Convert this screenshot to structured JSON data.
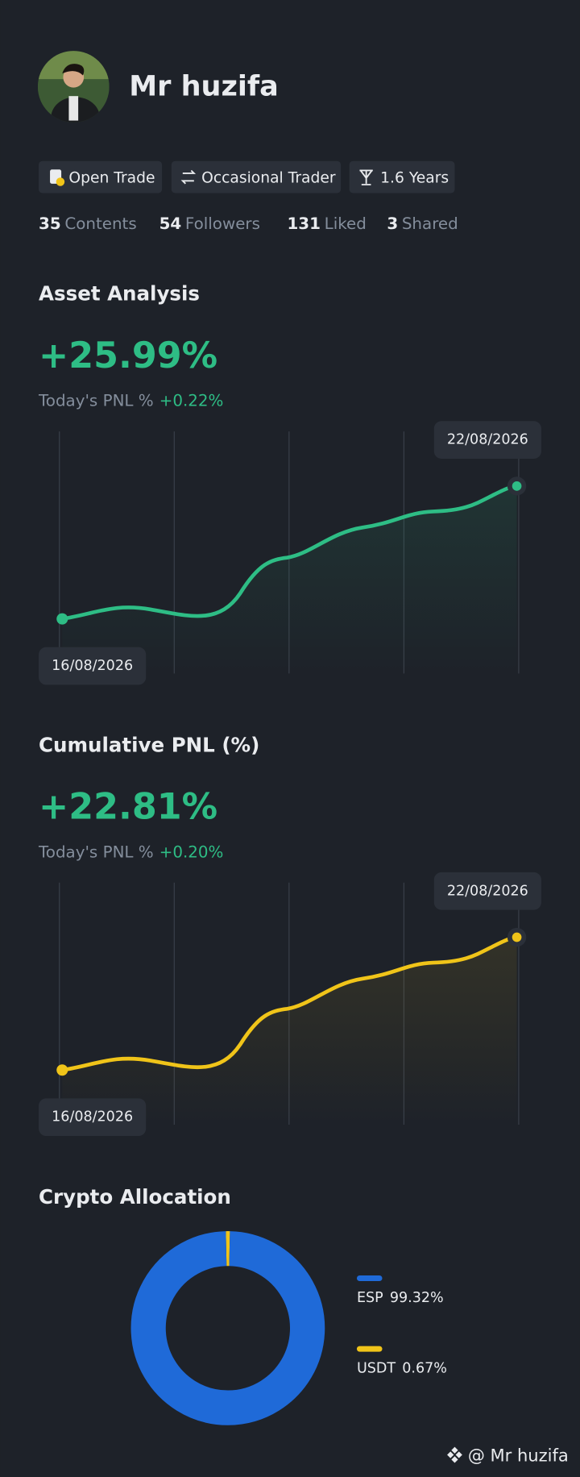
{
  "profile": {
    "name": "Mr huzifa",
    "badges": [
      "Open Trade",
      "Occasional Trader",
      "1.6 Years"
    ],
    "stats": [
      {
        "count": 35,
        "label": "Contents"
      },
      {
        "count": 54,
        "label": "Followers"
      },
      {
        "count": 131,
        "label": "Liked"
      },
      {
        "count": 3,
        "label": "Shared"
      }
    ]
  },
  "asset_analysis": {
    "title": "Asset Analysis",
    "value": "+25.99%",
    "pnl_label": "Today's PNL %",
    "pnl_value": "+0.22%",
    "start_date": "16/08/2026",
    "end_date": "22/08/2026"
  },
  "cumulative_pnl": {
    "title": "Cumulative PNL (%)",
    "value": "+22.81%",
    "pnl_label": "Today's PNL %",
    "pnl_value": "+0.20%",
    "start_date": "16/08/2026",
    "end_date": "22/08/2026"
  },
  "chart_data": {
    "type": "pie",
    "title": "Crypto Allocation",
    "categories": [
      "ESP",
      "USDT"
    ],
    "values": [
      99.32,
      0.67
    ],
    "value_labels": [
      "99.32%",
      "0.67%"
    ],
    "colors": [
      "#1f6ad8",
      "#f0c419"
    ]
  },
  "watermark": "@ Mr huzifa"
}
